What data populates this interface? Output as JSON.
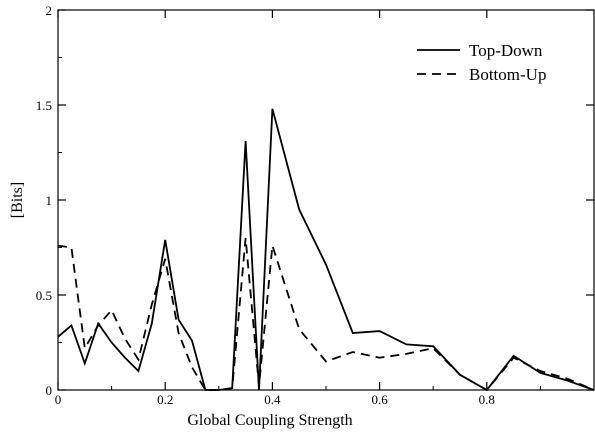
{
  "chart_data": {
    "type": "line",
    "title": "",
    "xlabel": "Global Coupling Strength",
    "ylabel": "[Bits]",
    "xlim": [
      0,
      1
    ],
    "ylim": [
      0,
      2
    ],
    "x_ticks": [
      0,
      0.2,
      0.4,
      0.6,
      0.8
    ],
    "x_tick_labels": [
      "0",
      "0.2",
      "0.4",
      "0.6",
      "0.8"
    ],
    "y_ticks": [
      0,
      0.5,
      1,
      1.5,
      2
    ],
    "y_tick_labels": [
      "0",
      "0.5",
      "1",
      "1.5",
      "2"
    ],
    "grid": false,
    "legend_position": "top-right",
    "series": [
      {
        "name": "Top-Down",
        "style": "solid",
        "color": "#000000",
        "x": [
          0,
          0.025,
          0.05,
          0.075,
          0.1,
          0.125,
          0.15,
          0.175,
          0.2,
          0.225,
          0.25,
          0.275,
          0.3,
          0.325,
          0.35,
          0.375,
          0.4,
          0.45,
          0.5,
          0.55,
          0.6,
          0.65,
          0.7,
          0.75,
          0.8,
          0.85,
          0.9,
          0.95,
          1.0
        ],
        "y": [
          0.28,
          0.34,
          0.14,
          0.35,
          0.25,
          0.17,
          0.1,
          0.35,
          0.79,
          0.37,
          0.26,
          0,
          0,
          0.01,
          1.31,
          0,
          1.48,
          0.95,
          0.66,
          0.3,
          0.31,
          0.24,
          0.23,
          0.08,
          0,
          0.18,
          0.09,
          0.05,
          0
        ]
      },
      {
        "name": "Bottom-Up",
        "style": "dashed",
        "color": "#000000",
        "x": [
          0,
          0.025,
          0.05,
          0.075,
          0.1,
          0.125,
          0.15,
          0.175,
          0.2,
          0.225,
          0.25,
          0.275,
          0.3,
          0.325,
          0.35,
          0.375,
          0.4,
          0.45,
          0.5,
          0.55,
          0.6,
          0.65,
          0.7,
          0.75,
          0.8,
          0.85,
          0.9,
          0.95,
          1.0
        ],
        "y": [
          0.76,
          0.75,
          0.22,
          0.34,
          0.42,
          0.27,
          0.16,
          0.45,
          0.69,
          0.3,
          0.12,
          0,
          0,
          0.01,
          0.8,
          0.02,
          0.76,
          0.32,
          0.15,
          0.2,
          0.17,
          0.19,
          0.22,
          0.08,
          0,
          0.17,
          0.1,
          0.06,
          0
        ]
      }
    ]
  }
}
